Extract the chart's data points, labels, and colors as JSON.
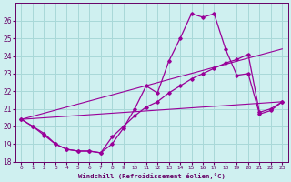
{
  "xlabel": "Windchill (Refroidissement éolien,°C)",
  "background_color": "#cff0f0",
  "grid_color": "#a8d8d8",
  "line_color": "#990099",
  "xlim": [
    -0.5,
    23.5
  ],
  "ylim": [
    18,
    27
  ],
  "yticks": [
    18,
    19,
    20,
    21,
    22,
    23,
    24,
    25,
    26
  ],
  "xticks": [
    0,
    1,
    2,
    3,
    4,
    5,
    6,
    7,
    8,
    9,
    10,
    11,
    12,
    13,
    14,
    15,
    16,
    17,
    18,
    19,
    20,
    21,
    22,
    23
  ],
  "line1_x": [
    0,
    1,
    2,
    3,
    4,
    5,
    6,
    7,
    8,
    9,
    10,
    11,
    12,
    13,
    14,
    15,
    16,
    17,
    18,
    19,
    20,
    21,
    22,
    23
  ],
  "line1_y": [
    20.4,
    20.0,
    19.6,
    19.0,
    18.7,
    18.6,
    18.6,
    18.5,
    19.0,
    19.9,
    21.0,
    22.3,
    21.9,
    23.7,
    25.0,
    26.4,
    26.2,
    26.4,
    24.4,
    22.9,
    23.0,
    20.7,
    20.9,
    21.4
  ],
  "line2_x": [
    0,
    1,
    2,
    3,
    4,
    5,
    6,
    7,
    8,
    9,
    10,
    11,
    12,
    13,
    14,
    15,
    16,
    17,
    18,
    19,
    20,
    21,
    22,
    23
  ],
  "line2_y": [
    20.4,
    20.0,
    19.5,
    19.0,
    18.7,
    18.6,
    18.6,
    18.5,
    19.4,
    20.0,
    20.6,
    21.1,
    21.4,
    21.9,
    22.3,
    22.7,
    23.0,
    23.3,
    23.6,
    23.8,
    24.1,
    20.8,
    21.0,
    21.4
  ],
  "line3_x": [
    0,
    23
  ],
  "line3_y": [
    20.4,
    21.4
  ],
  "line4_x": [
    0,
    23
  ],
  "line4_y": [
    20.4,
    24.4
  ]
}
